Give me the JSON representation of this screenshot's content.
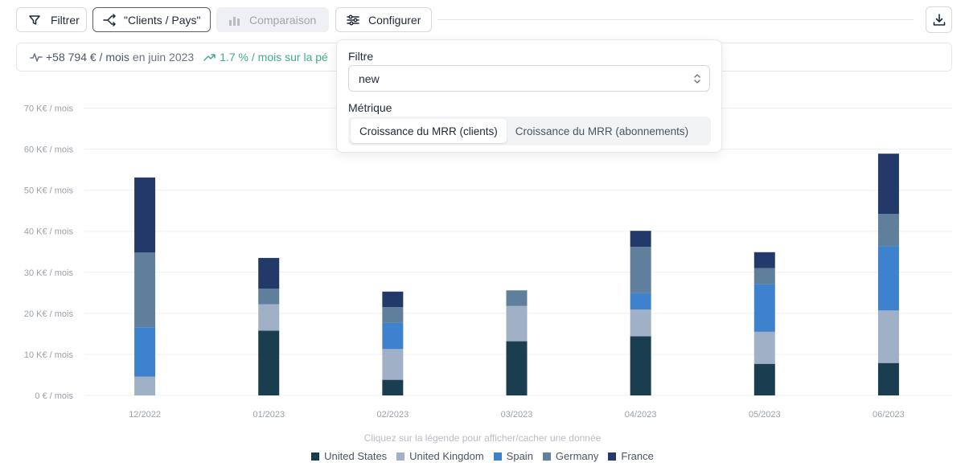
{
  "toolbar": {
    "filter_label": "Filtrer",
    "breakdown_label": "\"Clients / Pays\"",
    "comparison_label": "Comparaison",
    "configure_label": "Configurer"
  },
  "summary": {
    "value": "+58 794 € / mois",
    "period": "en juin 2023",
    "growth": "1.7 % / mois sur la pé"
  },
  "popover": {
    "filter_label": "Filtre",
    "filter_value": "new",
    "metric_label": "Métrique",
    "metric_options": [
      "Croissance du MRR (clients)",
      "Croissance du MRR (abonnements)"
    ],
    "metric_selected": "Croissance du MRR (clients)"
  },
  "legend": {
    "hint": "Cliquez sur la légende pour afficher/cacher une donnée"
  },
  "colors": {
    "accent_positive": "#3fae82"
  },
  "chart_data": {
    "type": "bar",
    "stacked": true,
    "categories": [
      "12/2022",
      "01/2023",
      "02/2023",
      "03/2023",
      "04/2023",
      "05/2023",
      "06/2023"
    ],
    "series": [
      {
        "name": "United States",
        "color": "#1a3d50",
        "values": [
          0,
          15.8,
          3.8,
          13.2,
          14.4,
          7.7,
          7.9
        ]
      },
      {
        "name": "United Kingdom",
        "color": "#9fb0c7",
        "values": [
          4.6,
          6.4,
          7.5,
          8.6,
          6.5,
          7.8,
          12.8
        ]
      },
      {
        "name": "Spain",
        "color": "#3e82cd",
        "values": [
          12.0,
          0,
          6.4,
          0,
          4.0,
          11.6,
          15.7
        ]
      },
      {
        "name": "Germany",
        "color": "#5f7f9c",
        "values": [
          18.2,
          3.8,
          3.8,
          3.8,
          11.3,
          3.9,
          7.8
        ]
      },
      {
        "name": "France",
        "color": "#22396a",
        "values": [
          18.3,
          7.5,
          3.8,
          0,
          3.9,
          3.9,
          14.7
        ]
      }
    ],
    "y_ticks": [
      "0 € / mois",
      "10 K€ / mois",
      "20 K€ / mois",
      "30 K€ / mois",
      "40 K€ / mois",
      "50 K€ / mois",
      "60 K€ / mois",
      "70 K€ / mois"
    ],
    "ylim": [
      0,
      70
    ],
    "grid": true,
    "legend_position": "bottom"
  }
}
